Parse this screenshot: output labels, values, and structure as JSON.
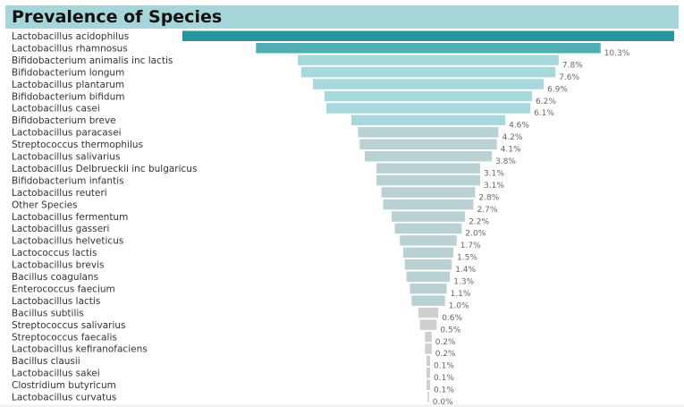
{
  "title": "Prevalence of Species",
  "chart_data": {
    "type": "bar",
    "subtype": "funnel",
    "title": "Prevalence of Species",
    "categories": [
      "Lactobacillus acidophilus",
      "Lactobacillus rhamnosus",
      "Bifidobacterium animalis inc lactis",
      "Bifidobacterium longum",
      "Lactobacillus plantarum",
      "Bifidobacterium bifidum",
      "Lactobacillus casei",
      "Bifidobacterium breve",
      "Lactobacillus paracasei",
      "Streptococcus thermophilus",
      "Lactobacillus salivarius",
      "Lactobacillus Delbrueckii inc bulgaricus",
      "Bifidobacterium infantis",
      "Lactobacillus reuteri",
      "Other Species",
      "Lactobacillus fermentum",
      "Lactobacillus gasseri",
      "Lactobacillus helveticus",
      "Lactococcus lactis",
      "Lactobacillus brevis",
      "Bacillus coagulans",
      "Enterococcus faecium",
      "Lactobacillus lactis",
      "Bacillus subtilis",
      "Streptococcus salivarius",
      "Streptococcus faecalis",
      "Lactobacillus kefiranofaciens",
      "Bacillus clausii",
      "Lactobacillus sakei",
      "Clostridium butyricum",
      "Lactobacillus curvatus"
    ],
    "values": [
      14.7,
      10.3,
      7.8,
      7.6,
      6.9,
      6.2,
      6.1,
      4.6,
      4.2,
      4.1,
      3.8,
      3.1,
      3.1,
      2.8,
      2.7,
      2.2,
      2.0,
      1.7,
      1.5,
      1.4,
      1.3,
      1.1,
      1.0,
      0.6,
      0.5,
      0.2,
      0.2,
      0.1,
      0.1,
      0.1,
      0.0
    ],
    "value_labels": [
      "",
      "10.3%",
      "7.8%",
      "7.6%",
      "6.9%",
      "6.2%",
      "6.1%",
      "4.6%",
      "4.2%",
      "4.1%",
      "3.8%",
      "3.1%",
      "3.1%",
      "2.8%",
      "2.7%",
      "2.2%",
      "2.0%",
      "1.7%",
      "1.5%",
      "1.4%",
      "1.3%",
      "1.1%",
      "1.0%",
      "0.6%",
      "0.5%",
      "0.2%",
      "0.2%",
      "0.1%",
      "0.1%",
      "0.1%",
      "0.0%"
    ],
    "colors": {
      "top": "#26969b",
      "high": "#4fafb3",
      "mid": "#a8d8dc",
      "low": "#bad1d3",
      "lowest": "#cdcfd0",
      "title_bar": "#a6d6da"
    }
  }
}
